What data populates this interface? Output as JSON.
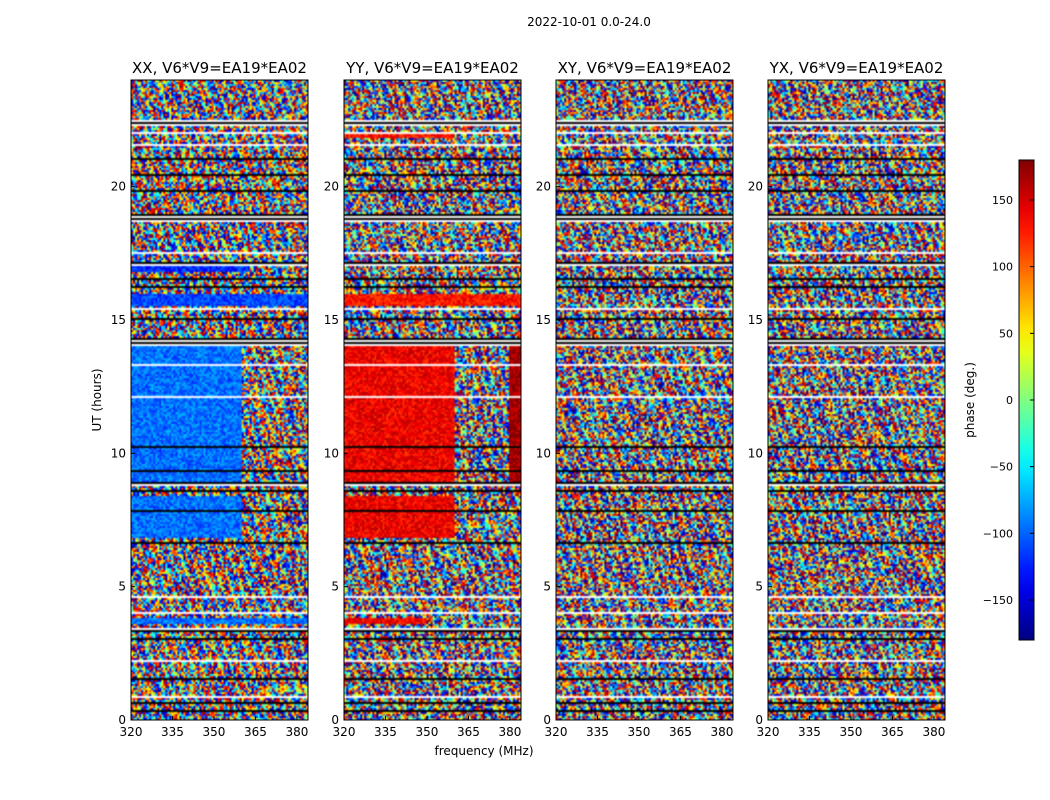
{
  "figure": {
    "suptitle": "2022-10-01 0.0-24.0",
    "xlabel": "frequency (MHz)",
    "ylabel": "UT (hours)"
  },
  "chart_data": [
    {
      "type": "heatmap",
      "title": "XX, V6*V9=EA19*EA02",
      "x_ticks": [
        "320",
        "335",
        "350",
        "365",
        "380"
      ],
      "x_tick_values": [
        320,
        335,
        350,
        365,
        380
      ],
      "y_ticks": [
        "0",
        "5",
        "10",
        "15",
        "20"
      ],
      "y_tick_values": [
        0,
        5,
        10,
        15,
        20
      ],
      "xlim": [
        320,
        384
      ],
      "ylim": [
        0,
        24
      ],
      "coherent_regions": [
        {
          "t0": 3.6,
          "t1": 3.8,
          "f0": 320,
          "f1": 384,
          "phase": -95
        },
        {
          "t0": 6.8,
          "t1": 8.4,
          "f0": 320,
          "f1": 360,
          "phase": -95
        },
        {
          "t0": 8.9,
          "t1": 14.0,
          "f0": 320,
          "f1": 360,
          "phase": -95
        },
        {
          "t0": 15.5,
          "t1": 16.0,
          "f0": 320,
          "f1": 384,
          "phase": -110
        },
        {
          "t0": 16.8,
          "t1": 17.0,
          "f0": 320,
          "f1": 363,
          "phase": -120
        }
      ]
    },
    {
      "type": "heatmap",
      "title": "YY, V6*V9=EA19*EA02",
      "x_ticks": [
        "320",
        "335",
        "350",
        "365",
        "380"
      ],
      "x_tick_values": [
        320,
        335,
        350,
        365,
        380
      ],
      "y_ticks": [
        "0",
        "5",
        "10",
        "15",
        "20"
      ],
      "y_tick_values": [
        0,
        5,
        10,
        15,
        20
      ],
      "xlim": [
        320,
        384
      ],
      "ylim": [
        0,
        24
      ],
      "coherent_regions": [
        {
          "t0": 3.6,
          "t1": 3.8,
          "f0": 320,
          "f1": 350,
          "phase": 140
        },
        {
          "t0": 6.8,
          "t1": 8.4,
          "f0": 320,
          "f1": 360,
          "phase": 140
        },
        {
          "t0": 8.9,
          "t1": 14.0,
          "f0": 320,
          "f1": 360,
          "phase": 140
        },
        {
          "t0": 8.9,
          "t1": 14.0,
          "f0": 380,
          "f1": 384,
          "phase": 170
        },
        {
          "t0": 15.5,
          "t1": 16.0,
          "f0": 320,
          "f1": 384,
          "phase": 130
        },
        {
          "t0": 21.8,
          "t1": 22.0,
          "f0": 320,
          "f1": 360,
          "phase": 130
        }
      ]
    },
    {
      "type": "heatmap",
      "title": "XY, V6*V9=EA19*EA02",
      "x_ticks": [
        "320",
        "335",
        "350",
        "365",
        "380"
      ],
      "x_tick_values": [
        320,
        335,
        350,
        365,
        380
      ],
      "y_ticks": [
        "0",
        "5",
        "10",
        "15",
        "20"
      ],
      "y_tick_values": [
        0,
        5,
        10,
        15,
        20
      ],
      "xlim": [
        320,
        384
      ],
      "ylim": [
        0,
        24
      ],
      "coherent_regions": []
    },
    {
      "type": "heatmap",
      "title": "YX, V6*V9=EA19*EA02",
      "x_ticks": [
        "320",
        "335",
        "350",
        "365",
        "380"
      ],
      "x_tick_values": [
        320,
        335,
        350,
        365,
        380
      ],
      "y_ticks": [
        "0",
        "5",
        "10",
        "15",
        "20"
      ],
      "y_tick_values": [
        0,
        5,
        10,
        15,
        20
      ],
      "xlim": [
        320,
        384
      ],
      "ylim": [
        0,
        24
      ],
      "coherent_regions": []
    }
  ],
  "colorbar": {
    "label": "phase (deg.)",
    "ticks": [
      "150",
      "100",
      "50",
      "0",
      "−50",
      "−100",
      "−150"
    ],
    "tick_values": [
      150,
      100,
      50,
      0,
      -50,
      -100,
      -150
    ],
    "range": [
      -180,
      180
    ]
  },
  "flagged_time_ranges": [
    [
      0.3,
      0.35
    ],
    [
      0.6,
      0.65
    ],
    [
      0.85,
      0.9
    ],
    [
      1.5,
      1.55
    ],
    [
      2.2,
      2.25
    ],
    [
      2.6,
      2.65
    ],
    [
      3.0,
      3.05
    ],
    [
      3.3,
      3.45
    ],
    [
      4.0,
      4.05
    ],
    [
      4.6,
      4.65
    ],
    [
      5.3,
      5.35
    ],
    [
      5.75,
      5.8
    ],
    [
      6.2,
      6.25
    ],
    [
      6.6,
      6.7
    ],
    [
      7.1,
      7.15
    ],
    [
      7.4,
      7.45
    ],
    [
      7.8,
      7.85
    ],
    [
      8.3,
      8.35
    ],
    [
      8.55,
      8.65
    ],
    [
      8.8,
      8.9
    ],
    [
      9.3,
      9.35
    ],
    [
      10.2,
      10.25
    ],
    [
      11.0,
      11.05
    ],
    [
      11.6,
      11.65
    ],
    [
      12.1,
      12.15
    ],
    [
      12.8,
      12.85
    ],
    [
      13.3,
      13.35
    ],
    [
      14.05,
      14.3
    ],
    [
      14.6,
      14.65
    ],
    [
      15.0,
      15.05
    ],
    [
      15.4,
      15.45
    ],
    [
      16.2,
      16.25
    ],
    [
      16.5,
      16.55
    ],
    [
      17.05,
      17.2
    ],
    [
      17.5,
      17.55
    ],
    [
      18.7,
      18.95
    ],
    [
      19.8,
      19.85
    ],
    [
      20.4,
      20.45
    ],
    [
      21.0,
      21.05
    ],
    [
      21.5,
      21.6
    ],
    [
      22.0,
      22.05
    ],
    [
      22.3,
      22.5
    ],
    [
      23.0,
      23.05
    ],
    [
      23.6,
      23.65
    ]
  ]
}
